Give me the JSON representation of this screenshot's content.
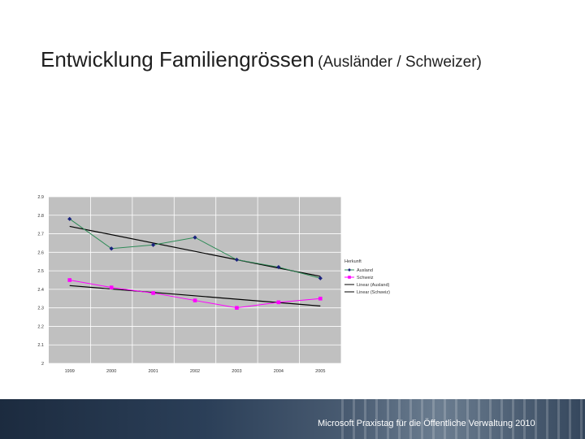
{
  "slide": {
    "title_main": "Entwicklung Familiengrössen",
    "title_sub": "(Ausländer / Schweizer)",
    "footer": "Microsoft Praxistag für die Öffentliche Verwaltung 2010"
  },
  "colors": {
    "plot_bg": "#c0c0c0",
    "auslaender": "#2e8b57",
    "auslaender_marker": "#1a237e",
    "schweiz": "#ff00ff",
    "trend": "#000000"
  },
  "chart_data": {
    "type": "line",
    "title": "",
    "xlabel": "",
    "ylabel": "",
    "categories": [
      "1999",
      "2000",
      "2001",
      "2002",
      "2003",
      "2004",
      "2005"
    ],
    "ylim": [
      2,
      2.9
    ],
    "yticks": [
      "2",
      "2.1",
      "2.2",
      "2.3",
      "2.4",
      "2.5",
      "2.6",
      "2.7",
      "2.8",
      "2.9"
    ],
    "grid": true,
    "legend_title": "Herkunft",
    "legend_position": "right",
    "series": [
      {
        "name": "Ausland",
        "values": [
          2.78,
          2.62,
          2.64,
          2.68,
          2.56,
          2.52,
          2.46
        ]
      },
      {
        "name": "Schweiz",
        "values": [
          2.45,
          2.41,
          2.38,
          2.34,
          2.3,
          2.33,
          2.35
        ]
      }
    ],
    "trendlines": [
      {
        "name": "Linear (Ausland)",
        "start": 2.74,
        "end": 2.47
      },
      {
        "name": "Linear (Schweiz)",
        "start": 2.42,
        "end": 2.31
      }
    ]
  }
}
